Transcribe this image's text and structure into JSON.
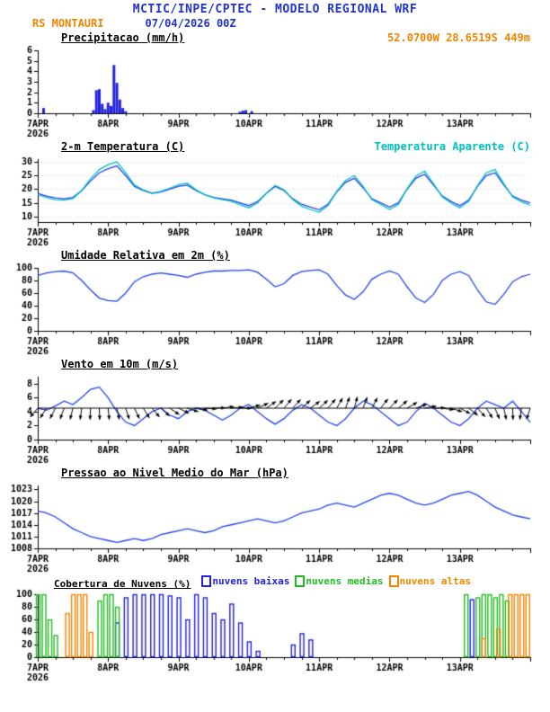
{
  "header": {
    "title": "MCTIC/INPE/CPTEC - MODELO REGIONAL WRF",
    "station": "RS MONTAURI",
    "run": "07/04/2026 00Z",
    "location": "52.0700W 28.6519S 449m"
  },
  "colors": {
    "blue": "#2233cc",
    "orange": "#f28500",
    "cyan": "#00c0c0",
    "line_blue": "#2244ee",
    "bar_blue": "#2222dd",
    "green": "#22bb22",
    "black": "#000000"
  },
  "x_axis": {
    "hours_total": 168,
    "minor_step": 6,
    "tick_hours": [
      0,
      24,
      48,
      72,
      96,
      120,
      144
    ],
    "tick_labels": [
      "7APR",
      "8APR",
      "9APR",
      "10APR",
      "11APR",
      "12APR",
      "13APR"
    ],
    "year": "2026"
  },
  "chart_data": [
    {
      "id": "precip",
      "type": "bar",
      "title": "Precipitacao (mm/h)",
      "xlabel": "",
      "ylabel": "mm/h",
      "ylim": [
        0,
        6
      ],
      "yticks": [
        0,
        1,
        2,
        3,
        4,
        5,
        6
      ],
      "bar_color": "#2222dd",
      "bars": [
        {
          "h": 2,
          "v": 0.5
        },
        {
          "h": 19,
          "v": 0.3
        },
        {
          "h": 20,
          "v": 2.2
        },
        {
          "h": 21,
          "v": 2.3
        },
        {
          "h": 22,
          "v": 0.9
        },
        {
          "h": 23,
          "v": 0.4
        },
        {
          "h": 24,
          "v": 1.0
        },
        {
          "h": 25,
          "v": 0.7
        },
        {
          "h": 26,
          "v": 4.6
        },
        {
          "h": 27,
          "v": 2.9
        },
        {
          "h": 28,
          "v": 1.3
        },
        {
          "h": 29,
          "v": 0.5
        },
        {
          "h": 30,
          "v": 0.2
        },
        {
          "h": 69,
          "v": 0.15
        },
        {
          "h": 70,
          "v": 0.25
        },
        {
          "h": 71,
          "v": 0.3
        },
        {
          "h": 73,
          "v": 0.2
        }
      ]
    },
    {
      "id": "temp2m",
      "type": "line",
      "title": "2-m Temperatura (C)",
      "right_label": "Temperatura Aparente (C)",
      "ylim": [
        8,
        31
      ],
      "yticks": [
        10,
        15,
        20,
        25,
        30
      ],
      "grid": "dotted",
      "x_step": 3,
      "series": [
        {
          "name": "2-m Temperatura (C)",
          "color": "#2244ee",
          "values": [
            18.5,
            17.5,
            16.8,
            16.5,
            17.0,
            19.5,
            23.0,
            26.0,
            27.5,
            28.5,
            25.0,
            21.0,
            19.5,
            18.5,
            19.0,
            20.0,
            21.0,
            21.5,
            19.5,
            18.0,
            17.0,
            16.5,
            16.0,
            15.0,
            14.0,
            15.5,
            18.5,
            21.0,
            19.5,
            16.5,
            14.5,
            13.5,
            12.5,
            14.5,
            19.0,
            22.5,
            24.0,
            20.5,
            16.5,
            15.0,
            13.5,
            15.0,
            20.0,
            24.0,
            25.5,
            21.5,
            17.5,
            15.5,
            14.0,
            16.0,
            21.0,
            25.0,
            26.0,
            21.5,
            17.5,
            16.0,
            15.0
          ]
        },
        {
          "name": "Temperatura Aparente (C)",
          "color": "#00c0c0",
          "values": [
            18.0,
            17.0,
            16.2,
            16.0,
            16.6,
            19.5,
            23.8,
            27.2,
            29.0,
            30.0,
            26.0,
            21.5,
            19.8,
            18.6,
            19.2,
            20.4,
            21.6,
            22.2,
            19.8,
            18.0,
            16.8,
            16.2,
            15.6,
            14.4,
            13.2,
            15.0,
            18.6,
            21.4,
            19.8,
            16.2,
            13.8,
            12.6,
            11.6,
            14.0,
            19.2,
            23.2,
            25.0,
            21.0,
            16.2,
            14.4,
            12.6,
            14.4,
            20.2,
            24.8,
            26.6,
            22.0,
            17.2,
            14.9,
            13.2,
            15.5,
            21.3,
            26.0,
            27.2,
            22.0,
            17.2,
            15.4,
            14.2
          ]
        }
      ]
    },
    {
      "id": "rh2m",
      "type": "line",
      "title": "Umidade Relativa em 2m (%)",
      "ylim": [
        0,
        100
      ],
      "yticks": [
        0,
        20,
        40,
        60,
        80,
        100
      ],
      "x_step": 3,
      "series": [
        {
          "name": "Umidade Relativa em 2m (%)",
          "color": "#2244ee",
          "values": [
            88,
            92,
            94,
            95,
            92,
            80,
            65,
            52,
            48,
            47,
            60,
            78,
            86,
            90,
            92,
            90,
            88,
            85,
            90,
            93,
            95,
            95,
            96,
            96,
            97,
            93,
            82,
            70,
            75,
            88,
            94,
            96,
            97,
            90,
            72,
            57,
            50,
            62,
            82,
            90,
            95,
            90,
            70,
            52,
            45,
            58,
            80,
            90,
            94,
            88,
            65,
            46,
            42,
            58,
            78,
            86,
            90
          ]
        }
      ]
    },
    {
      "id": "wind10m",
      "type": "line",
      "title": "Vento em 10m (m/s)",
      "ylim": [
        0,
        9
      ],
      "yticks": [
        0,
        2,
        4,
        6,
        8
      ],
      "x_step": 3,
      "series": [
        {
          "name": "Velocidade do vento (m/s)",
          "color": "#2244ee",
          "values": [
            4.5,
            4.2,
            4.8,
            5.5,
            5.0,
            6.0,
            7.2,
            7.5,
            6.0,
            4.0,
            2.5,
            2.0,
            3.0,
            4.0,
            4.5,
            3.5,
            3.0,
            4.0,
            4.5,
            4.2,
            3.5,
            2.8,
            3.5,
            4.5,
            5.0,
            4.0,
            3.0,
            2.2,
            3.0,
            4.2,
            5.0,
            4.5,
            3.5,
            2.5,
            2.0,
            3.0,
            4.5,
            5.5,
            5.0,
            4.0,
            3.0,
            2.0,
            2.5,
            4.0,
            5.2,
            4.5,
            3.5,
            2.5,
            2.0,
            3.0,
            4.5,
            5.5,
            5.0,
            4.5,
            5.5,
            4.0,
            2.5
          ]
        }
      ],
      "arrows": {
        "baseline_value": 4.5,
        "color": "#000000",
        "dirs_deg": [
          230,
          237,
          243,
          250,
          256,
          262,
          268,
          272,
          276,
          282,
          288,
          295,
          302,
          310,
          318,
          326,
          334,
          342,
          350,
          356,
          2,
          8,
          5,
          0,
          15,
          25,
          35,
          45,
          50,
          48,
          42,
          36,
          42,
          50,
          60,
          70,
          75,
          70,
          62,
          52,
          46,
          40,
          30,
          20,
          10,
          2,
          352,
          342,
          332,
          322,
          312,
          302,
          292,
          282,
          272,
          262,
          252
        ]
      }
    },
    {
      "id": "slp",
      "type": "line",
      "title": "Pressao ao Nivel Medio do Mar (hPa)",
      "ylim": [
        1008,
        1024
      ],
      "yticks": [
        1008,
        1011,
        1014,
        1017,
        1020,
        1023
      ],
      "x_step": 3,
      "series": [
        {
          "name": "Pressao ao nivel medio do mar (hPa)",
          "color": "#2244ee",
          "values": [
            1017.5,
            1017.0,
            1016.0,
            1014.5,
            1013.0,
            1012.0,
            1011.0,
            1010.5,
            1010.0,
            1009.5,
            1010.0,
            1010.5,
            1010.0,
            1010.5,
            1011.5,
            1012.0,
            1012.5,
            1013.0,
            1012.5,
            1012.0,
            1012.5,
            1013.5,
            1014.0,
            1014.5,
            1015.0,
            1015.5,
            1015.0,
            1014.5,
            1015.0,
            1016.0,
            1017.0,
            1017.5,
            1018.0,
            1019.0,
            1019.5,
            1019.0,
            1018.5,
            1019.5,
            1020.5,
            1021.5,
            1022.0,
            1021.5,
            1020.5,
            1019.5,
            1019.0,
            1019.5,
            1020.5,
            1021.5,
            1022.0,
            1022.5,
            1021.5,
            1020.0,
            1018.5,
            1017.5,
            1016.5,
            1016.0,
            1015.5
          ]
        }
      ]
    },
    {
      "id": "clouds",
      "type": "bar-multi",
      "title": "Cobertura de Nuvens (%)",
      "ylim": [
        0,
        100
      ],
      "yticks": [
        0,
        20,
        40,
        60,
        80,
        100
      ],
      "legend": [
        {
          "label": "nuvens baixas",
          "color": "#2222dd"
        },
        {
          "label": "nuvens medias",
          "color": "#22bb22"
        },
        {
          "label": "nuvens altas",
          "color": "#f28500"
        }
      ],
      "series": [
        {
          "name": "nuvens baixas",
          "color": "#2222dd",
          "bars": [
            {
              "h": 27,
              "v": 55
            },
            {
              "h": 30,
              "v": 95
            },
            {
              "h": 33,
              "v": 100
            },
            {
              "h": 36,
              "v": 100
            },
            {
              "h": 39,
              "v": 100
            },
            {
              "h": 42,
              "v": 100
            },
            {
              "h": 45,
              "v": 98
            },
            {
              "h": 48,
              "v": 95
            },
            {
              "h": 51,
              "v": 60
            },
            {
              "h": 54,
              "v": 100
            },
            {
              "h": 57,
              "v": 95
            },
            {
              "h": 60,
              "v": 70
            },
            {
              "h": 63,
              "v": 60
            },
            {
              "h": 66,
              "v": 85
            },
            {
              "h": 69,
              "v": 55
            },
            {
              "h": 72,
              "v": 25
            },
            {
              "h": 75,
              "v": 10
            },
            {
              "h": 87,
              "v": 20
            },
            {
              "h": 90,
              "v": 38
            },
            {
              "h": 93,
              "v": 28
            },
            {
              "h": 148,
              "v": 92
            }
          ]
        },
        {
          "name": "nuvens medias",
          "color": "#22bb22",
          "bars": [
            {
              "h": 0,
              "v": 100
            },
            {
              "h": 2,
              "v": 100
            },
            {
              "h": 4,
              "v": 60
            },
            {
              "h": 6,
              "v": 35
            },
            {
              "h": 21,
              "v": 90
            },
            {
              "h": 23,
              "v": 100
            },
            {
              "h": 25,
              "v": 100
            },
            {
              "h": 27,
              "v": 80
            },
            {
              "h": 146,
              "v": 100
            },
            {
              "h": 150,
              "v": 95
            },
            {
              "h": 152,
              "v": 100
            },
            {
              "h": 154,
              "v": 100
            },
            {
              "h": 156,
              "v": 95
            },
            {
              "h": 158,
              "v": 100
            },
            {
              "h": 160,
              "v": 90
            }
          ]
        },
        {
          "name": "nuvens altas",
          "color": "#f28500",
          "bars": [
            {
              "h": 10,
              "v": 70
            },
            {
              "h": 12,
              "v": 100
            },
            {
              "h": 14,
              "v": 100
            },
            {
              "h": 16,
              "v": 100
            },
            {
              "h": 18,
              "v": 40
            },
            {
              "h": 152,
              "v": 30
            },
            {
              "h": 157,
              "v": 45
            },
            {
              "h": 161,
              "v": 100
            },
            {
              "h": 163,
              "v": 100
            },
            {
              "h": 165,
              "v": 100
            },
            {
              "h": 167,
              "v": 100
            }
          ]
        }
      ]
    }
  ]
}
